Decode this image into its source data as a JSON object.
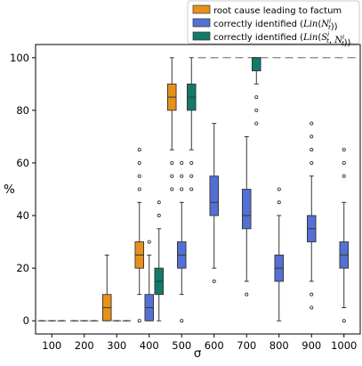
{
  "chart_data": {
    "type": "boxplot",
    "xlabel": "σ",
    "ylabel": "%",
    "categories": [
      "100",
      "200",
      "300",
      "400",
      "500",
      "600",
      "700",
      "800",
      "900",
      "1000"
    ],
    "ylim": [
      -5,
      105
    ],
    "yticks": [
      0,
      20,
      40,
      60,
      80,
      100
    ],
    "grid": false,
    "legend_position": "top-right",
    "reference_line": {
      "y": 100,
      "style": "dashed",
      "color": "#808080",
      "from_category": "600"
    },
    "colors": {
      "root_cause": "#E8901C",
      "lin_n": "#5470D4",
      "lin_sn": "#137A6A"
    },
    "series": [
      {
        "name": "root cause leading to factum",
        "color_key": "root_cause",
        "boxes": [
          {
            "category": "100",
            "whislo": 0,
            "q1": 0,
            "med": 0,
            "q3": 0,
            "whishi": 0,
            "fliers": []
          },
          {
            "category": "200",
            "whislo": 0,
            "q1": 0,
            "med": 0,
            "q3": 0,
            "whishi": 0,
            "fliers": []
          },
          {
            "category": "300",
            "whislo": 0,
            "q1": 0,
            "med": 5,
            "q3": 10,
            "whishi": 25,
            "fliers": []
          },
          {
            "category": "400",
            "whislo": 10,
            "q1": 20,
            "med": 25,
            "q3": 30,
            "whishi": 45,
            "fliers": [
              0,
              50,
              55,
              60,
              65
            ]
          },
          {
            "category": "500",
            "whislo": 65,
            "q1": 80,
            "med": 85,
            "q3": 90,
            "whishi": 100,
            "fliers": [
              50,
              55,
              60
            ]
          }
        ]
      },
      {
        "name": "correctly identified",
        "legend_math": "Lin(N_t^i)",
        "color_key": "lin_n",
        "boxes": [
          {
            "category": "100",
            "whislo": 0,
            "q1": 0,
            "med": 0,
            "q3": 0,
            "whishi": 0,
            "fliers": []
          },
          {
            "category": "200",
            "whislo": 0,
            "q1": 0,
            "med": 0,
            "q3": 0,
            "whishi": 0,
            "fliers": []
          },
          {
            "category": "300",
            "whislo": 0,
            "q1": 0,
            "med": 0,
            "q3": 0,
            "whishi": 0,
            "fliers": []
          },
          {
            "category": "400",
            "whislo": 0,
            "q1": 0,
            "med": 5,
            "q3": 10,
            "whishi": 25,
            "fliers": [
              30
            ]
          },
          {
            "category": "500",
            "whislo": 10,
            "q1": 20,
            "med": 25,
            "q3": 30,
            "whishi": 45,
            "fliers": [
              0,
              50,
              55,
              60
            ]
          },
          {
            "category": "600",
            "whislo": 20,
            "q1": 40,
            "med": 45,
            "q3": 55,
            "whishi": 75,
            "fliers": [
              15
            ]
          },
          {
            "category": "700",
            "whislo": 15,
            "q1": 35,
            "med": 40,
            "q3": 50,
            "whishi": 70,
            "fliers": [
              10
            ]
          },
          {
            "category": "800",
            "whislo": 0,
            "q1": 15,
            "med": 20,
            "q3": 25,
            "whishi": 40,
            "fliers": [
              45,
              50
            ]
          },
          {
            "category": "900",
            "whislo": 15,
            "q1": 30,
            "med": 35,
            "q3": 40,
            "whishi": 55,
            "fliers": [
              5,
              10,
              60,
              65,
              70,
              75
            ]
          },
          {
            "category": "1000",
            "whislo": 5,
            "q1": 20,
            "med": 25,
            "q3": 30,
            "whishi": 45,
            "fliers": [
              0,
              55,
              60,
              65
            ]
          }
        ]
      },
      {
        "name": "correctly identified",
        "legend_math": "Lin(S_t^i, N_t^i)",
        "color_key": "lin_sn",
        "boxes": [
          {
            "category": "100",
            "whislo": 0,
            "q1": 0,
            "med": 0,
            "q3": 0,
            "whishi": 0,
            "fliers": []
          },
          {
            "category": "200",
            "whislo": 0,
            "q1": 0,
            "med": 0,
            "q3": 0,
            "whishi": 0,
            "fliers": []
          },
          {
            "category": "300",
            "whislo": 0,
            "q1": 0,
            "med": 0,
            "q3": 0,
            "whishi": 0,
            "fliers": []
          },
          {
            "category": "400",
            "whislo": 0,
            "q1": 10,
            "med": 15,
            "q3": 20,
            "whishi": 35,
            "fliers": [
              40,
              45
            ]
          },
          {
            "category": "500",
            "whislo": 65,
            "q1": 80,
            "med": 85,
            "q3": 90,
            "whishi": 100,
            "fliers": [
              50,
              55,
              60
            ]
          },
          {
            "category": "700",
            "whislo": 90,
            "q1": 95,
            "med": 100,
            "q3": 100,
            "whishi": 100,
            "fliers": [
              75,
              80,
              85
            ]
          }
        ]
      }
    ]
  }
}
